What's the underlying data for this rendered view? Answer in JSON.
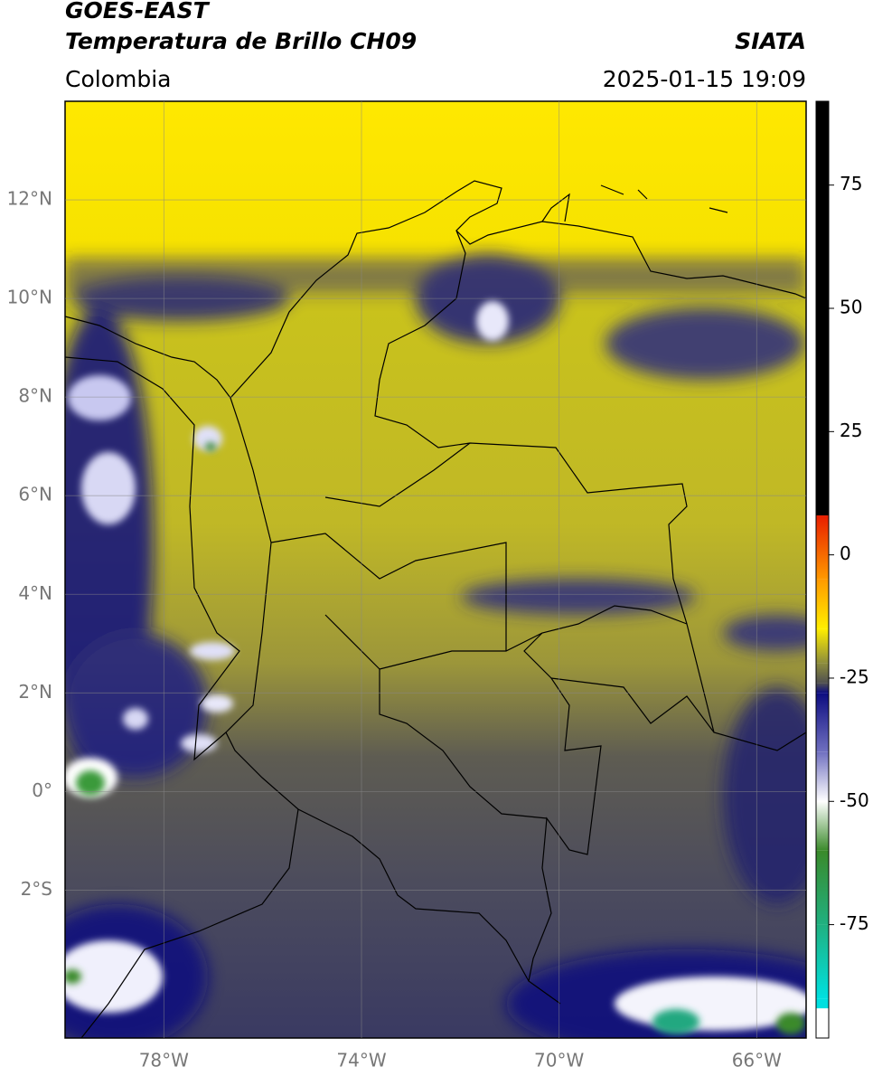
{
  "header": {
    "title": "GOES-EAST",
    "subtitle": "Temperatura de Brillo CH09",
    "source": "SIATA",
    "region": "Colombia",
    "datetime": "2025-01-15 19:09"
  },
  "map": {
    "xlim": [
      -80,
      -65
    ],
    "ylim": [
      -5,
      14
    ],
    "xticks": [
      {
        "value": -78,
        "label": "78°W"
      },
      {
        "value": -74,
        "label": "74°W"
      },
      {
        "value": -70,
        "label": "70°W"
      },
      {
        "value": -66,
        "label": "66°W"
      }
    ],
    "yticks": [
      {
        "value": 12,
        "label": "12°N"
      },
      {
        "value": 10,
        "label": "10°N"
      },
      {
        "value": 8,
        "label": "8°N"
      },
      {
        "value": 6,
        "label": "6°N"
      },
      {
        "value": 4,
        "label": "4°N"
      },
      {
        "value": 2,
        "label": "2°N"
      },
      {
        "value": 0,
        "label": "0°"
      },
      {
        "value": -2,
        "label": "2°S"
      }
    ],
    "grid": true
  },
  "colorbar": {
    "lim": [
      -98,
      92
    ],
    "ticks": [
      75,
      50,
      25,
      0,
      -25,
      -50,
      -75
    ],
    "stops": [
      {
        "value": 92,
        "color": "#000000"
      },
      {
        "value": 8,
        "color": "#000000"
      },
      {
        "value": 8,
        "color": "#e81e00"
      },
      {
        "value": -5,
        "color": "#ff9a00"
      },
      {
        "value": -15,
        "color": "#ffee00"
      },
      {
        "value": -22,
        "color": "#8c8c3c"
      },
      {
        "value": -26,
        "color": "#505050"
      },
      {
        "value": -28,
        "color": "#0c0c80"
      },
      {
        "value": -40,
        "color": "#7070c0"
      },
      {
        "value": -50,
        "color": "#ffffff"
      },
      {
        "value": -60,
        "color": "#3a8a2a"
      },
      {
        "value": -75,
        "color": "#20b080"
      },
      {
        "value": -90,
        "color": "#00e0e0"
      },
      {
        "value": -92,
        "color": "#00e0e0"
      },
      {
        "value": -92,
        "color": "#ffffff"
      },
      {
        "value": -98,
        "color": "#ffffff"
      }
    ]
  }
}
